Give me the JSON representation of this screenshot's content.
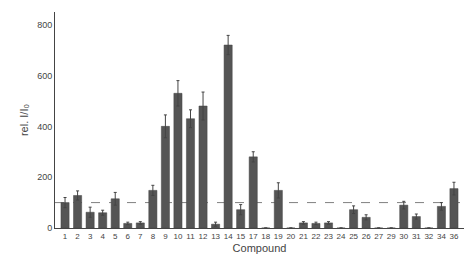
{
  "chart_data": {
    "type": "bar",
    "categories": [
      "1",
      "2",
      "3",
      "4",
      "5",
      "6",
      "7",
      "8",
      "9",
      "10",
      "11",
      "12",
      "13",
      "14",
      "15",
      "17",
      "18",
      "19",
      "20",
      "21",
      "22",
      "23",
      "24",
      "25",
      "26",
      "27",
      "29",
      "30",
      "31",
      "32",
      "34",
      "36"
    ],
    "values": [
      100,
      128,
      62,
      60,
      115,
      18,
      20,
      148,
      400,
      530,
      430,
      480,
      15,
      720,
      72,
      280,
      0,
      148,
      0,
      20,
      18,
      20,
      0,
      72,
      42,
      0,
      0,
      90,
      45,
      0,
      85,
      155
    ],
    "errors": [
      20,
      18,
      20,
      10,
      25,
      5,
      5,
      20,
      45,
      50,
      35,
      55,
      8,
      38,
      20,
      20,
      0,
      30,
      0,
      5,
      5,
      5,
      0,
      15,
      10,
      0,
      0,
      15,
      10,
      0,
      15,
      25
    ],
    "color": "#555555",
    "xlabel": "Compound",
    "ylabel": "rel. I/I₀",
    "ylim": [
      0,
      850
    ],
    "yticks": [
      0,
      200,
      400,
      600,
      800
    ],
    "reference_line": 100,
    "grid": false
  }
}
